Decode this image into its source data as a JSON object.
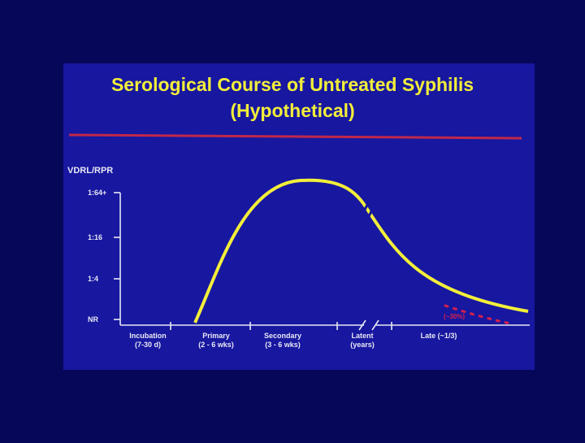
{
  "chart_data": {
    "type": "line",
    "title": [
      "Serological Course of Untreated Syphilis",
      "(Hypothetical)"
    ],
    "y_label": "VDRL/RPR",
    "y_categories": [
      "1:64+",
      "1:16",
      "1:4",
      "NR"
    ],
    "x_categories": [
      [
        "Incubation",
        "(7-30 d)"
      ],
      [
        "Primary",
        "(2 - 6 wks)"
      ],
      [
        "Secondary",
        "(3 - 6 wks)"
      ],
      [
        "Latent",
        "(years)"
      ],
      [
        "Late (~1/3)"
      ]
    ],
    "annotation": "(~30%)"
  }
}
